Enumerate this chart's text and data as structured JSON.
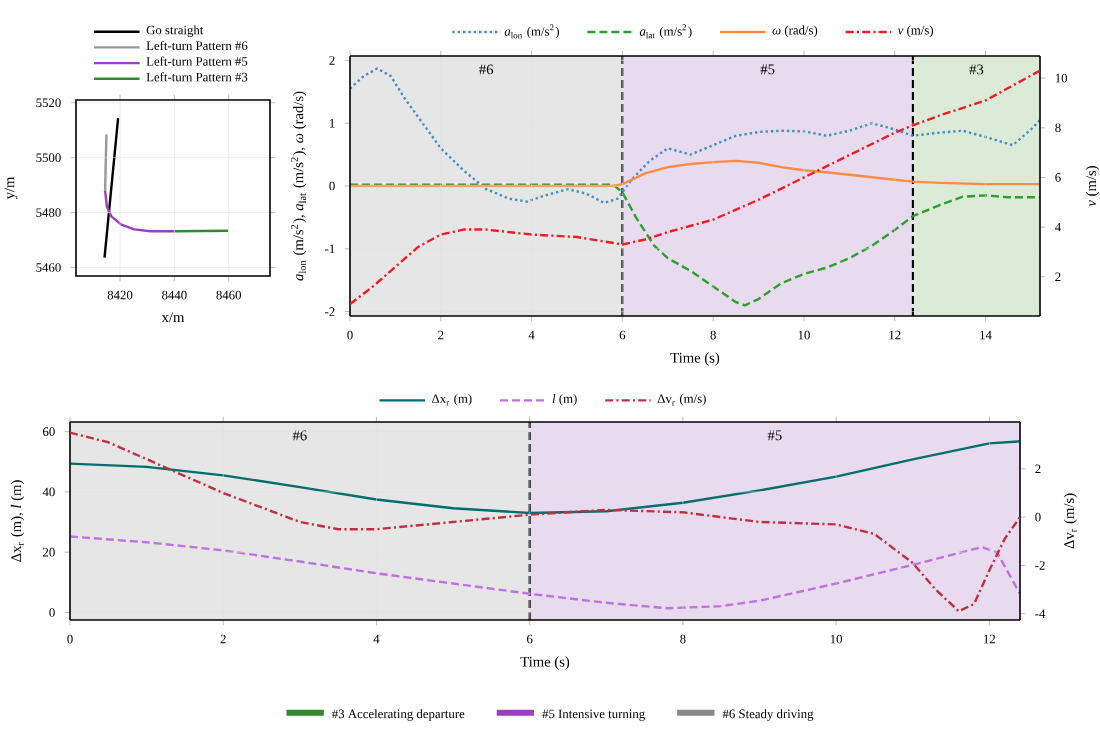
{
  "chart_data": [
    {
      "type": "line",
      "xlabel": "x/m",
      "ylabel": "y/m",
      "xlim": [
        8403.8,
        8475.2
      ],
      "ylim": [
        5456.9,
        5521
      ],
      "xticks": [
        8420,
        8440,
        8460
      ],
      "yticks": [
        5460,
        5480,
        5500,
        5520
      ],
      "grid": true,
      "legend": "top",
      "series": [
        {
          "name": "Go straight",
          "color": "#000000",
          "x": [
            8414.3,
            8419.3
          ],
          "values": [
            5463.6,
            5514.4
          ]
        },
        {
          "name": "Left-turn Pattern #6",
          "color": "#999999",
          "x": [
            8415,
            8414.5
          ],
          "values": [
            5508.4,
            5488
          ]
        },
        {
          "name": "Left-turn Pattern #5",
          "color": "#9b3fbf",
          "x": [
            8414.5,
            8415.2,
            8416.9,
            8420.5,
            8425.2,
            8431.2,
            8440
          ],
          "values": [
            5488,
            5482,
            5478.5,
            5475.6,
            5473.9,
            5473.2,
            5473.2
          ]
        },
        {
          "name": "Left-turn Pattern #3",
          "color": "#2e8b2e",
          "x": [
            8440,
            8459.8
          ],
          "values": [
            5473.2,
            5473.4
          ]
        }
      ]
    },
    {
      "type": "line",
      "xlabel": "Time (s)",
      "ylabel": "*a*$_{lon}$ (m/s$^{2}$), *a*$_{lat}$ (m/s$^{2}$), *ω* (rad/s)",
      "y2label": "*v* (m/s)",
      "xlim": [
        0,
        15.2
      ],
      "ylim": [
        -2.07,
        2.07
      ],
      "y2lim": [
        0.42,
        10.89
      ],
      "xticks": [
        0,
        2,
        4,
        6,
        8,
        10,
        12,
        14
      ],
      "yticks": [
        -2,
        -1,
        0,
        1,
        2
      ],
      "y2ticks": [
        2,
        4,
        6,
        8,
        10
      ],
      "grid": true,
      "legend": "top",
      "bands": [
        {
          "axis": "x",
          "from": 0,
          "to": 6,
          "label": "#6",
          "color": "#e6e6e6"
        },
        {
          "axis": "x",
          "from": 6,
          "to": 12.4,
          "label": "#5",
          "color": "#e9dbef"
        },
        {
          "axis": "x",
          "from": 12.4,
          "to": 15.2,
          "label": "#3",
          "color": "#dcebd8"
        }
      ],
      "ref_lines": [
        {
          "axis": "x",
          "value": 6,
          "line_style": "dashed",
          "color": "#000000"
        },
        {
          "axis": "x",
          "value": 12.4,
          "line_style": "dashed",
          "color": "#000000"
        }
      ],
      "series": [
        {
          "name": "*a*$_{lon}$ (m/s$^{2}$)",
          "color": "#3f8fc4",
          "line_style": "dotted",
          "x": [
            0,
            0.3,
            0.6,
            0.9,
            1.2,
            1.6,
            2,
            2.5,
            3,
            3.5,
            3.9,
            4.3,
            4.8,
            5.2,
            5.6,
            5.9,
            6.2,
            6.6,
            7,
            7.5,
            8,
            8.5,
            9,
            9.5,
            10,
            10.5,
            11,
            11.5,
            12,
            12.4,
            13,
            13.5,
            14,
            14.6,
            15,
            15.2
          ],
          "values": [
            1.55,
            1.75,
            1.87,
            1.75,
            1.4,
            1.0,
            0.6,
            0.25,
            -0.05,
            -0.2,
            -0.25,
            -0.15,
            -0.05,
            -0.12,
            -0.27,
            -0.2,
            0.1,
            0.4,
            0.6,
            0.5,
            0.65,
            0.8,
            0.86,
            0.88,
            0.87,
            0.8,
            0.88,
            1.0,
            0.9,
            0.8,
            0.85,
            0.88,
            0.78,
            0.65,
            0.9,
            1.05
          ]
        },
        {
          "name": "*a*$_{lat}$ (m/s$^{2}$)",
          "color": "#2ca02c",
          "line_style": "dashed",
          "x": [
            0,
            2,
            4,
            5.8,
            6,
            6.3,
            6.7,
            7,
            7.5,
            8,
            8.5,
            8.7,
            9,
            9.5,
            10,
            10.5,
            11,
            11.5,
            12,
            12.4,
            13,
            13.5,
            14,
            14.5,
            15.2
          ],
          "values": [
            0.02,
            0.02,
            0.02,
            0.02,
            -0.1,
            -0.5,
            -0.95,
            -1.15,
            -1.35,
            -1.6,
            -1.85,
            -1.9,
            -1.8,
            -1.55,
            -1.4,
            -1.3,
            -1.15,
            -0.95,
            -0.7,
            -0.48,
            -0.3,
            -0.17,
            -0.15,
            -0.18,
            -0.18
          ]
        },
        {
          "name": "*ω* (rad/s)",
          "color": "#ff8c42",
          "line_style": "solid",
          "x": [
            0,
            2,
            4,
            5.8,
            6,
            6.5,
            7,
            7.5,
            8,
            8.5,
            9,
            9.5,
            10,
            10.5,
            11,
            11.5,
            12,
            12.4,
            13,
            14,
            15.2
          ],
          "values": [
            0,
            0,
            0,
            0,
            0.03,
            0.2,
            0.3,
            0.35,
            0.38,
            0.4,
            0.37,
            0.3,
            0.25,
            0.22,
            0.18,
            0.14,
            0.1,
            0.07,
            0.05,
            0.03,
            0.03
          ]
        },
        {
          "name": "*v* (m/s)",
          "color": "#ee1c25",
          "line_style": "dashdot",
          "axis": "y2",
          "x": [
            0,
            0.5,
            1,
            1.5,
            2,
            2.5,
            3,
            4,
            5,
            6,
            6.5,
            7,
            8,
            9,
            10,
            11,
            12,
            12.4,
            13,
            14,
            15.2
          ],
          "values": [
            0.9,
            1.6,
            2.4,
            3.2,
            3.7,
            3.9,
            3.9,
            3.7,
            3.6,
            3.3,
            3.5,
            3.8,
            4.3,
            5.1,
            6.0,
            6.9,
            7.8,
            8.1,
            8.5,
            9.1,
            10.3
          ]
        }
      ]
    },
    {
      "type": "line",
      "xlabel": "Time (s)",
      "ylabel": "Δx$_{r}$ (m), *l* (m)",
      "y2label": "Δv$_{r}$ (m/s)",
      "xlim": [
        0,
        12.4
      ],
      "ylim": [
        -2.5,
        63.2
      ],
      "y2lim": [
        -4.26,
        3.94
      ],
      "xticks": [
        0,
        2,
        4,
        6,
        8,
        10,
        12
      ],
      "yticks": [
        0,
        20,
        40,
        60
      ],
      "y2ticks": [
        -4,
        -2,
        0,
        2
      ],
      "grid": true,
      "legend": "top",
      "bands": [
        {
          "axis": "x",
          "from": 0,
          "to": 6,
          "label": "#6",
          "color": "#e6e6e6"
        },
        {
          "axis": "x",
          "from": 6,
          "to": 12.4,
          "label": "#5",
          "color": "#e9dbef"
        }
      ],
      "ref_lines": [
        {
          "axis": "x",
          "value": 6,
          "line_style": "dashed",
          "color": "#000000"
        }
      ],
      "series": [
        {
          "name": "Δx$_{r}$ (m)",
          "color": "#006d6f",
          "line_style": "solid",
          "x": [
            0,
            1,
            2,
            3,
            4,
            5,
            6,
            7,
            8,
            9,
            10,
            11,
            12,
            12.4
          ],
          "values": [
            49.4,
            48.3,
            45.5,
            41.6,
            37.5,
            34.6,
            33,
            33.6,
            36.4,
            40.5,
            45.1,
            50.8,
            56.1,
            56.8
          ]
        },
        {
          "name": "*l* (m)",
          "color": "#c071e0",
          "line_style": "dashed",
          "x": [
            0,
            1,
            2,
            3,
            4,
            5,
            6,
            7,
            7.8,
            8.5,
            9,
            10,
            11,
            11.9,
            12.1,
            12.4
          ],
          "values": [
            25.2,
            23.3,
            20.6,
            16.9,
            13,
            9.6,
            6.2,
            3.2,
            1.4,
            2.1,
            3.9,
            9.6,
            15.8,
            21.7,
            19.9,
            6.2
          ]
        },
        {
          "name": "Δv$_{r}$ (m/s)",
          "color": "#c0313f",
          "line_style": "dashdot",
          "axis": "y2",
          "x": [
            0,
            0.5,
            1,
            1.5,
            2,
            2.5,
            3,
            3.5,
            4,
            5,
            6,
            7,
            8,
            9,
            10,
            10.5,
            11,
            11.3,
            11.6,
            11.8,
            12,
            12.2,
            12.4
          ],
          "values": [
            3.5,
            3.1,
            2.4,
            1.7,
            1.0,
            0.4,
            -0.2,
            -0.5,
            -0.5,
            -0.2,
            0.1,
            0.3,
            0.2,
            -0.2,
            -0.3,
            -0.7,
            -1.9,
            -3.0,
            -3.9,
            -3.6,
            -2.2,
            -0.9,
            0.0
          ]
        }
      ]
    },
    {
      "type": "other",
      "categories": [
        "#3 Accelerating departure",
        "#5 Intensive turning",
        "#6 Steady driving"
      ],
      "colors": [
        "#2e8b2e",
        "#9b3fbf",
        "#888888"
      ]
    }
  ]
}
